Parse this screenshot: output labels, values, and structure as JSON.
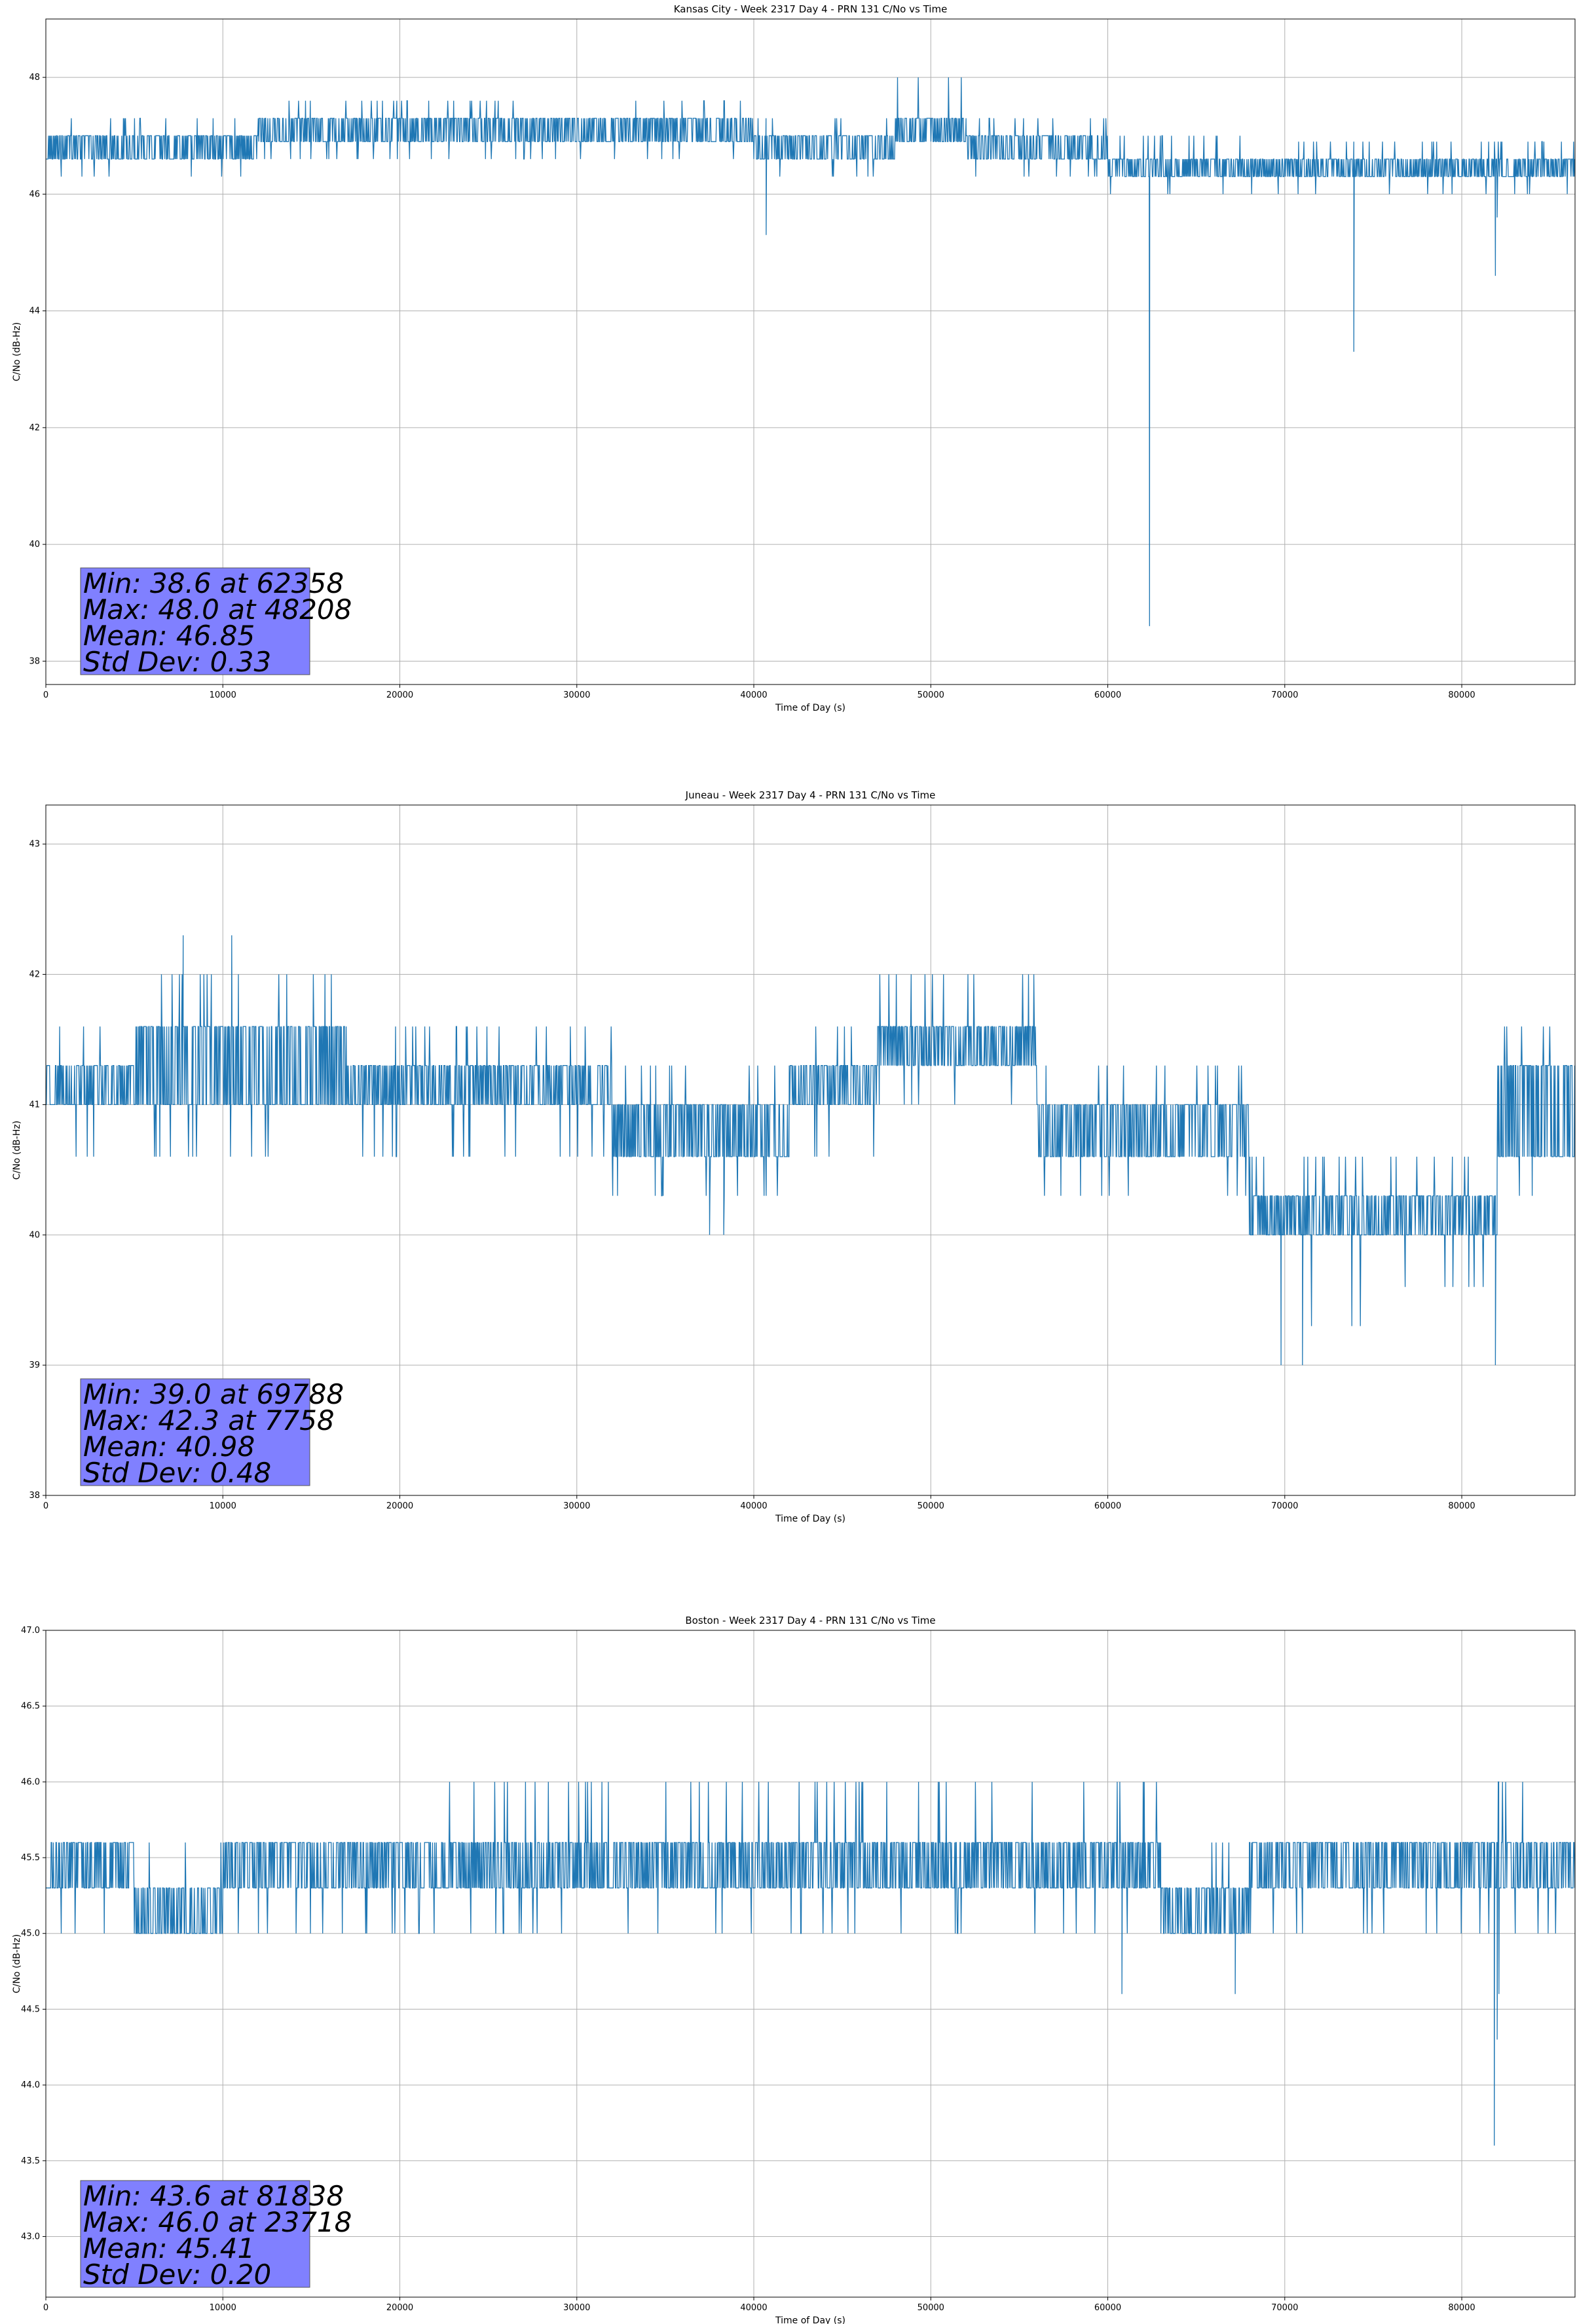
{
  "chart_data": [
    {
      "type": "line",
      "title": "Kansas City - Week 2317 Day 4 - PRN 131 C/No vs Time",
      "xlabel": "Time of Day (s)",
      "ylabel": "C/No (dB-Hz)",
      "xlim": [
        0,
        86400
      ],
      "ylim": [
        37.6,
        49.0
      ],
      "xticks": [
        0,
        10000,
        20000,
        30000,
        40000,
        50000,
        60000,
        70000,
        80000
      ],
      "yticks": [
        38,
        40,
        42,
        44,
        46,
        48
      ],
      "yticklabels": [
        "38",
        "40",
        "42",
        "44",
        "46",
        "48"
      ],
      "grid": true,
      "line_color": "#1f77b4",
      "stats_box_color": "#8080ff",
      "stats": [
        "Min: 38.6 at 62358",
        "Max: 48.0 at 48208",
        "Mean: 46.85",
        "Std Dev: 0.33"
      ],
      "series": [
        {
          "segments": [
            {
              "x0": 0,
              "x1": 12000,
              "lo": 46.6,
              "hi": 47.0,
              "spike_hi": 47.3,
              "spike_lo": 46.3
            },
            {
              "x0": 12000,
              "x1": 40000,
              "lo": 46.9,
              "hi": 47.3,
              "spike_hi": 47.6,
              "spike_lo": 46.6
            },
            {
              "x0": 40000,
              "x1": 48000,
              "lo": 46.6,
              "hi": 47.0,
              "spike_hi": 47.3,
              "spike_lo": 46.3
            },
            {
              "x0": 48000,
              "x1": 52000,
              "lo": 46.9,
              "hi": 47.3,
              "spike_hi": 48.0,
              "spike_lo": 46.6
            },
            {
              "x0": 52000,
              "x1": 60000,
              "lo": 46.6,
              "hi": 47.0,
              "spike_hi": 47.3,
              "spike_lo": 46.3
            },
            {
              "x0": 60000,
              "x1": 70000,
              "lo": 46.3,
              "hi": 46.6,
              "spike_hi": 47.0,
              "spike_lo": 46.0
            },
            {
              "x0": 70000,
              "x1": 86400,
              "lo": 46.3,
              "hi": 46.6,
              "spike_hi": 46.9,
              "spike_lo": 46.0
            }
          ],
          "dips": [
            [
              40700,
              45.3
            ],
            [
              62358,
              38.6
            ],
            [
              73900,
              43.3
            ],
            [
              81900,
              44.6
            ],
            [
              82000,
              45.6
            ]
          ]
        }
      ]
    },
    {
      "type": "line",
      "title": "Juneau - Week 2317 Day 4 - PRN 131 C/No vs Time",
      "xlabel": "Time of Day (s)",
      "ylabel": "C/No (dB-Hz)",
      "xlim": [
        0,
        86400
      ],
      "ylim": [
        38.0,
        43.3
      ],
      "xticks": [
        0,
        10000,
        20000,
        30000,
        40000,
        50000,
        60000,
        70000,
        80000
      ],
      "yticks": [
        38,
        39,
        40,
        41,
        42,
        43
      ],
      "yticklabels": [
        "38",
        "39",
        "40",
        "41",
        "42",
        "43"
      ],
      "grid": true,
      "line_color": "#1f77b4",
      "stats_box_color": "#8080ff",
      "stats": [
        "Min: 39.0 at 69788",
        "Max: 42.3 at 7758",
        "Mean: 40.98",
        "Std Dev: 0.48"
      ],
      "series": [
        {
          "segments": [
            {
              "x0": 0,
              "x1": 5000,
              "lo": 41.0,
              "hi": 41.3,
              "spike_hi": 41.6,
              "spike_lo": 40.6
            },
            {
              "x0": 5000,
              "x1": 17000,
              "lo": 41.0,
              "hi": 41.6,
              "spike_hi": 42.0,
              "spike_lo": 40.6
            },
            {
              "x0": 17000,
              "x1": 32000,
              "lo": 41.0,
              "hi": 41.3,
              "spike_hi": 41.6,
              "spike_lo": 40.6
            },
            {
              "x0": 32000,
              "x1": 42000,
              "lo": 40.6,
              "hi": 41.0,
              "spike_hi": 41.3,
              "spike_lo": 40.3
            },
            {
              "x0": 42000,
              "x1": 47000,
              "lo": 41.0,
              "hi": 41.3,
              "spike_hi": 41.6,
              "spike_lo": 40.6
            },
            {
              "x0": 47000,
              "x1": 56000,
              "lo": 41.3,
              "hi": 41.6,
              "spike_hi": 42.0,
              "spike_lo": 41.0
            },
            {
              "x0": 56000,
              "x1": 68000,
              "lo": 40.6,
              "hi": 41.0,
              "spike_hi": 41.3,
              "spike_lo": 40.3
            },
            {
              "x0": 68000,
              "x1": 75000,
              "lo": 40.0,
              "hi": 40.3,
              "spike_hi": 40.6,
              "spike_lo": 39.3
            },
            {
              "x0": 75000,
              "x1": 82000,
              "lo": 40.0,
              "hi": 40.3,
              "spike_hi": 40.6,
              "spike_lo": 39.6
            },
            {
              "x0": 82000,
              "x1": 86400,
              "lo": 40.6,
              "hi": 41.3,
              "spike_hi": 41.6,
              "spike_lo": 40.3
            }
          ],
          "peaks": [
            [
              7758,
              42.3
            ],
            [
              10500,
              42.3
            ]
          ],
          "dips": [
            [
              37500,
              40.0
            ],
            [
              38300,
              40.0
            ],
            [
              69788,
              39.0
            ],
            [
              71000,
              39.0
            ],
            [
              81900,
              39.0
            ]
          ]
        }
      ]
    },
    {
      "type": "line",
      "title": "Boston - Week 2317 Day 4 - PRN 131 C/No vs Time",
      "xlabel": "Time of Day (s)",
      "ylabel": "C/No (dB-Hz)",
      "xlim": [
        0,
        86400
      ],
      "ylim": [
        42.6,
        47.0
      ],
      "xticks": [
        0,
        10000,
        20000,
        30000,
        40000,
        50000,
        60000,
        70000,
        80000
      ],
      "yticks": [
        43.0,
        43.5,
        44.0,
        44.5,
        45.0,
        45.5,
        46.0,
        46.5,
        47.0
      ],
      "yticklabels": [
        "43.0",
        "43.5",
        "44.0",
        "44.5",
        "45.0",
        "45.5",
        "46.0",
        "46.5",
        "47.0"
      ],
      "grid": true,
      "line_color": "#1f77b4",
      "stats_box_color": "#8080ff",
      "stats": [
        "Min: 43.6 at 81838",
        "Max: 46.0 at 23718",
        "Mean: 45.41",
        "Std Dev: 0.20"
      ],
      "series": [
        {
          "segments": [
            {
              "x0": 0,
              "x1": 5000,
              "lo": 45.3,
              "hi": 45.6,
              "spike_hi": 45.6,
              "spike_lo": 45.0
            },
            {
              "x0": 5000,
              "x1": 10000,
              "lo": 45.0,
              "hi": 45.3,
              "spike_hi": 45.6,
              "spike_lo": 45.0
            },
            {
              "x0": 10000,
              "x1": 22000,
              "lo": 45.3,
              "hi": 45.6,
              "spike_hi": 45.6,
              "spike_lo": 45.0
            },
            {
              "x0": 22000,
              "x1": 32000,
              "lo": 45.3,
              "hi": 45.6,
              "spike_hi": 46.0,
              "spike_lo": 45.0
            },
            {
              "x0": 32000,
              "x1": 63000,
              "lo": 45.3,
              "hi": 45.6,
              "spike_hi": 46.0,
              "spike_lo": 45.0
            },
            {
              "x0": 63000,
              "x1": 68000,
              "lo": 45.0,
              "hi": 45.3,
              "spike_hi": 45.6,
              "spike_lo": 45.0
            },
            {
              "x0": 68000,
              "x1": 82000,
              "lo": 45.3,
              "hi": 45.6,
              "spike_hi": 45.6,
              "spike_lo": 45.0
            },
            {
              "x0": 82000,
              "x1": 86400,
              "lo": 45.3,
              "hi": 45.6,
              "spike_hi": 46.0,
              "spike_lo": 45.0
            }
          ],
          "dips": [
            [
              60800,
              44.6
            ],
            [
              67200,
              44.6
            ],
            [
              81838,
              43.6
            ],
            [
              82000,
              44.3
            ],
            [
              82100,
              44.6
            ]
          ]
        }
      ]
    }
  ]
}
